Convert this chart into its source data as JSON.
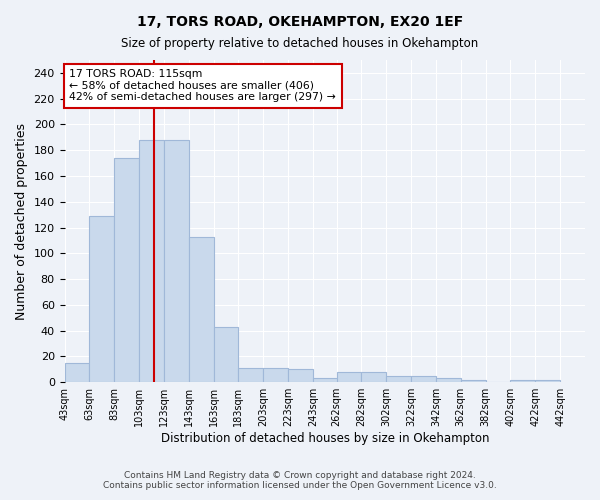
{
  "title1": "17, TORS ROAD, OKEHAMPTON, EX20 1EF",
  "title2": "Size of property relative to detached houses in Okehampton",
  "xlabel": "Distribution of detached houses by size in Okehampton",
  "ylabel": "Number of detached properties",
  "bin_labels": [
    "43sqm",
    "63sqm",
    "83sqm",
    "103sqm",
    "123sqm",
    "143sqm",
    "163sqm",
    "183sqm",
    "203sqm",
    "223sqm",
    "243sqm",
    "262sqm",
    "282sqm",
    "302sqm",
    "322sqm",
    "342sqm",
    "362sqm",
    "382sqm",
    "402sqm",
    "422sqm",
    "442sqm"
  ],
  "bin_edges_left": [
    43,
    63,
    83,
    103,
    123,
    143,
    163,
    183,
    203,
    223,
    243,
    262,
    282,
    302,
    322,
    342,
    362,
    382,
    402,
    422
  ],
  "bin_width": 20,
  "heights": [
    15,
    129,
    174,
    188,
    188,
    113,
    43,
    11,
    11,
    10,
    3,
    8,
    8,
    5,
    5,
    3,
    2,
    0,
    2,
    2
  ],
  "bar_color": "#c9d9ec",
  "bar_edge_color": "#a0b8d8",
  "vline_x": 115,
  "vline_color": "#cc0000",
  "annotation_text_line1": "17 TORS ROAD: 115sqm",
  "annotation_text_line2": "← 58% of detached houses are smaller (406)",
  "annotation_text_line3": "42% of semi-detached houses are larger (297) →",
  "annotation_box_color": "#ffffff",
  "annotation_box_edge": "#cc0000",
  "footer1": "Contains HM Land Registry data © Crown copyright and database right 2024.",
  "footer2": "Contains public sector information licensed under the Open Government Licence v3.0.",
  "bg_color": "#eef2f8",
  "ylim": [
    0,
    250
  ],
  "yticks": [
    0,
    20,
    40,
    60,
    80,
    100,
    120,
    140,
    160,
    180,
    200,
    220,
    240
  ],
  "grid_color": "#ffffff",
  "title1_fontsize": 10,
  "title2_fontsize": 8.5,
  "ylabel_fontsize": 9,
  "xlabel_fontsize": 8.5,
  "tick_fontsize": 8,
  "xtick_fontsize": 7,
  "footer_fontsize": 6.5,
  "ann_fontsize": 7.8
}
